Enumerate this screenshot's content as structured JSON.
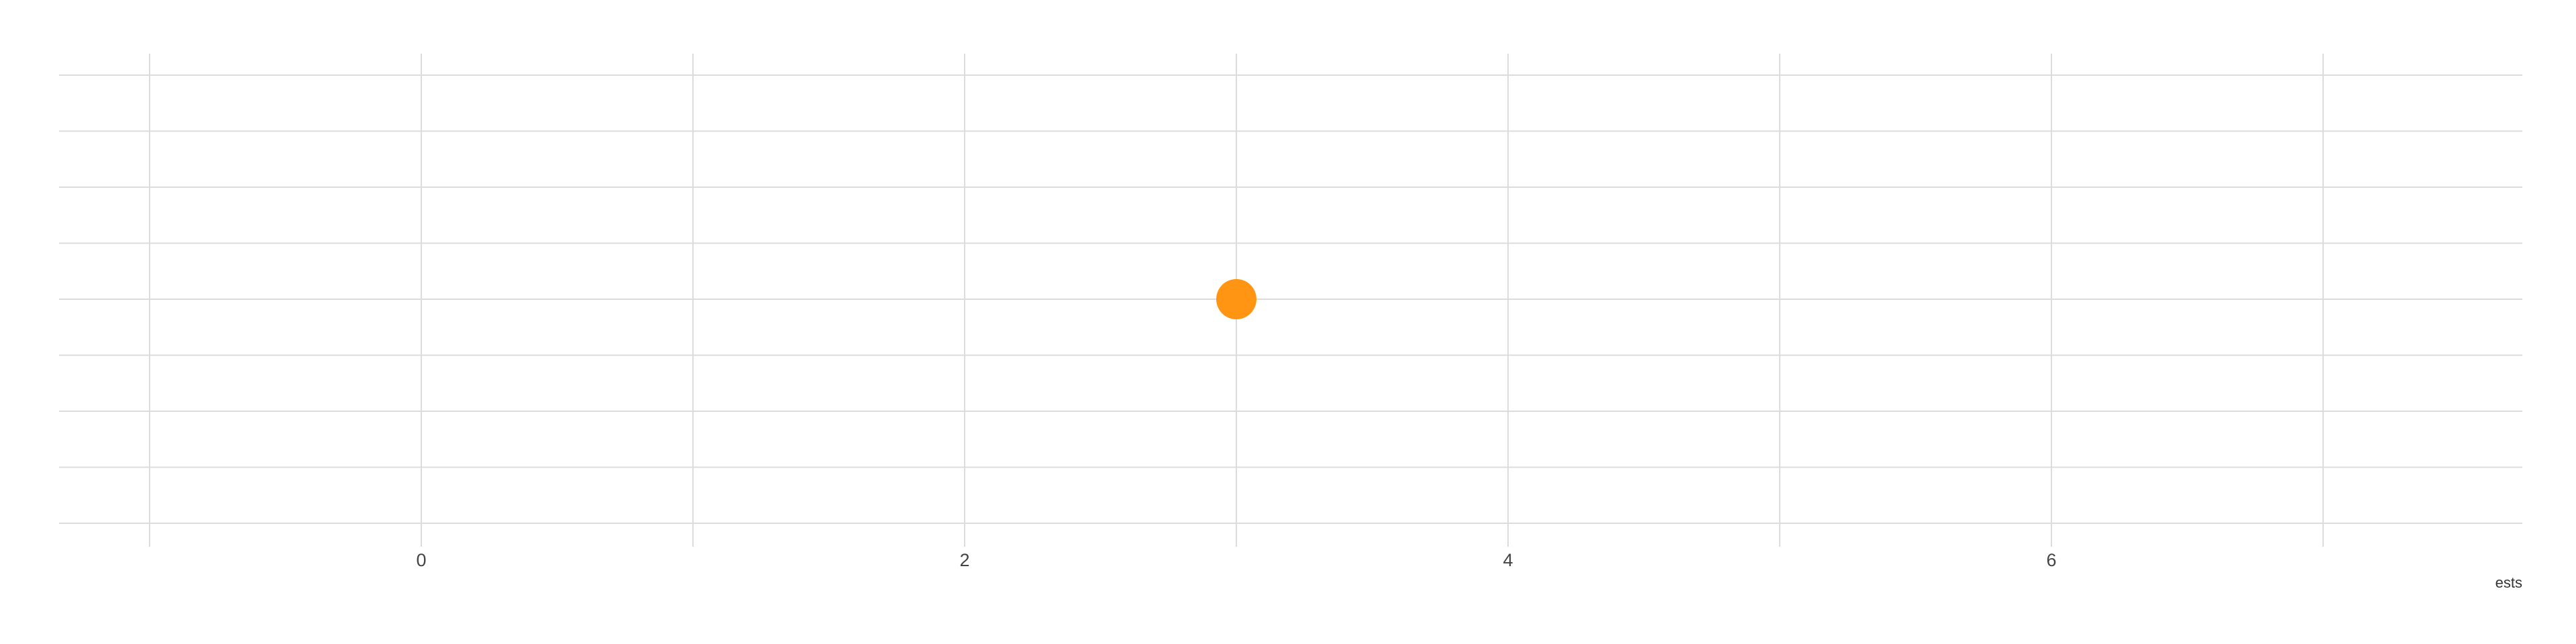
{
  "chart_data": {
    "type": "scatter",
    "title": "",
    "xlabel": "ests",
    "ylabel": "",
    "xlim": [
      -1.5,
      7.5
    ],
    "ylim": [
      0,
      8
    ],
    "x_ticks": [
      0,
      2,
      4,
      6
    ],
    "x_tick_labels": [
      "0",
      "2",
      "4",
      "6"
    ],
    "x_minor_grid": [
      -1,
      1,
      3,
      5,
      7
    ],
    "y_grid": [
      0,
      1,
      2,
      3,
      4,
      5,
      6,
      7,
      8
    ],
    "grid": true,
    "legend": "none",
    "series": [
      {
        "color": "#ff9512",
        "points": [
          {
            "x": 3,
            "y": 4
          }
        ]
      }
    ]
  }
}
